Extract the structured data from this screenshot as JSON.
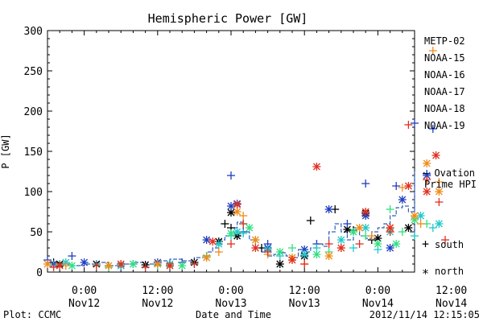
{
  "chart_data": {
    "type": "scatter",
    "title": "Hemispheric Power [GW]",
    "ylabel": "P [GW]",
    "xlabel": "Date and Time",
    "ylim": [
      0,
      300
    ],
    "yticks": [
      0,
      50,
      100,
      150,
      200,
      250,
      300
    ],
    "xlim_hours": [
      -6,
      54
    ],
    "xticks": [
      {
        "hour": 0,
        "time": "0:00",
        "day": "Nov12"
      },
      {
        "hour": 12,
        "time": "12:00",
        "day": "Nov12"
      },
      {
        "hour": 24,
        "time": "0:00",
        "day": "Nov13"
      },
      {
        "hour": 36,
        "time": "12:00",
        "day": "Nov13"
      },
      {
        "hour": 48,
        "time": "0:00",
        "day": "Nov14"
      },
      {
        "hour": 60,
        "time": "12:00",
        "day": "Nov14"
      }
    ],
    "legend_position": "right",
    "marker_legend": [
      {
        "symbol": "+",
        "label": "south"
      },
      {
        "symbol": "*",
        "label": "north"
      }
    ],
    "ovation_label_1": "— Ovation",
    "ovation_label_2": "Prime HPI",
    "ovation": {
      "name": "Ovation Prime HPI",
      "color": "#3060c0",
      "x": [
        -8,
        -6,
        -4,
        -2,
        0,
        2,
        4,
        6,
        8,
        10,
        12,
        14,
        16,
        18,
        20,
        21,
        22,
        23,
        24,
        25,
        26,
        27,
        28,
        29,
        30,
        31,
        32,
        33,
        34,
        35,
        36,
        37,
        38,
        39,
        40,
        41,
        42,
        43,
        44,
        45,
        46,
        47,
        48,
        49,
        50,
        51,
        52,
        53,
        54,
        55,
        56,
        57,
        58,
        58.5,
        59
      ],
      "y": [
        10,
        10,
        12,
        10,
        8,
        10,
        12,
        8,
        10,
        12,
        10,
        14,
        16,
        14,
        18,
        25,
        30,
        40,
        45,
        55,
        62,
        50,
        40,
        30,
        25,
        20,
        22,
        24,
        20,
        18,
        28,
        25,
        30,
        35,
        32,
        50,
        60,
        50,
        40,
        55,
        45,
        42,
        50,
        55,
        60,
        70,
        80,
        82,
        75,
        82,
        80,
        85,
        125,
        125,
        40
      ]
    },
    "series": [
      {
        "name": "METP-02",
        "color": "#000000",
        "south": [
          [
            -5,
            12
          ],
          [
            4,
            8
          ],
          [
            14,
            10
          ],
          [
            20,
            20
          ],
          [
            23,
            60
          ],
          [
            24,
            55
          ],
          [
            25,
            45
          ],
          [
            29,
            30
          ],
          [
            37,
            64
          ],
          [
            41,
            78
          ],
          [
            44,
            52
          ],
          [
            47,
            40
          ]
        ],
        "north": [
          [
            -4,
            10
          ],
          [
            2,
            10
          ],
          [
            10,
            9
          ],
          [
            18,
            12
          ],
          [
            22,
            38
          ],
          [
            24,
            74
          ],
          [
            25,
            45
          ],
          [
            32,
            10
          ],
          [
            36,
            20
          ],
          [
            43,
            53
          ],
          [
            46,
            73
          ],
          [
            48,
            42
          ],
          [
            53,
            55
          ]
        ]
      },
      {
        "name": "NOAA-15",
        "color": "#1f3fbf",
        "south": [
          [
            -6,
            15
          ],
          [
            -2,
            20
          ],
          [
            8,
            10
          ],
          [
            16,
            12
          ],
          [
            24,
            120
          ],
          [
            26,
            50
          ],
          [
            30,
            35
          ],
          [
            38,
            35
          ],
          [
            43,
            60
          ],
          [
            46,
            110
          ],
          [
            51,
            107
          ],
          [
            54,
            185
          ],
          [
            56,
            122
          ],
          [
            57,
            178
          ]
        ],
        "north": [
          [
            -5,
            10
          ],
          [
            0,
            12
          ],
          [
            6,
            8
          ],
          [
            12,
            12
          ],
          [
            20,
            40
          ],
          [
            24,
            82
          ],
          [
            25,
            85
          ],
          [
            30,
            30
          ],
          [
            36,
            28
          ],
          [
            40,
            78
          ],
          [
            46,
            70
          ],
          [
            50,
            30
          ],
          [
            52,
            90
          ],
          [
            56,
            120
          ]
        ]
      },
      {
        "name": "NOAA-16",
        "color": "#20c8c8",
        "south": [
          [
            -5,
            8
          ],
          [
            2,
            10
          ],
          [
            10,
            6
          ],
          [
            18,
            10
          ],
          [
            24,
            45
          ],
          [
            26,
            48
          ],
          [
            32,
            20
          ],
          [
            38,
            30
          ],
          [
            44,
            30
          ],
          [
            48,
            28
          ],
          [
            54,
            45
          ],
          [
            57,
            55
          ]
        ],
        "north": [
          [
            -3,
            12
          ],
          [
            6,
            8
          ],
          [
            14,
            10
          ],
          [
            22,
            35
          ],
          [
            25,
            50
          ],
          [
            30,
            28
          ],
          [
            36,
            22
          ],
          [
            42,
            40
          ],
          [
            46,
            55
          ],
          [
            50,
            50
          ],
          [
            55,
            70
          ],
          [
            58,
            60
          ]
        ]
      },
      {
        "name": "NOAA-17",
        "color": "#30e080",
        "south": [
          [
            -4,
            10
          ],
          [
            4,
            6
          ],
          [
            12,
            8
          ],
          [
            20,
            20
          ],
          [
            26,
            60
          ],
          [
            28,
            40
          ],
          [
            34,
            30
          ],
          [
            40,
            25
          ],
          [
            46,
            45
          ],
          [
            50,
            78
          ],
          [
            52,
            50
          ],
          [
            56,
            60
          ]
        ],
        "north": [
          [
            -2,
            8
          ],
          [
            8,
            10
          ],
          [
            16,
            8
          ],
          [
            24,
            48
          ],
          [
            27,
            55
          ],
          [
            32,
            25
          ],
          [
            38,
            22
          ],
          [
            44,
            50
          ],
          [
            48,
            35
          ],
          [
            51,
            35
          ],
          [
            54,
            65
          ]
        ]
      },
      {
        "name": "NOAA-18",
        "color": "#f08c1a",
        "south": [
          [
            -3,
            8
          ],
          [
            6,
            10
          ],
          [
            14,
            8
          ],
          [
            22,
            25
          ],
          [
            26,
            70
          ],
          [
            30,
            22
          ],
          [
            36,
            10
          ],
          [
            42,
            30
          ],
          [
            47,
            45
          ],
          [
            52,
            105
          ],
          [
            55,
            60
          ],
          [
            57,
            275
          ],
          [
            58,
            112
          ]
        ],
        "north": [
          [
            -6,
            10
          ],
          [
            4,
            8
          ],
          [
            12,
            10
          ],
          [
            20,
            18
          ],
          [
            25,
            75
          ],
          [
            28,
            40
          ],
          [
            34,
            18
          ],
          [
            40,
            20
          ],
          [
            45,
            55
          ],
          [
            50,
            55
          ],
          [
            54,
            70
          ],
          [
            56,
            135
          ],
          [
            58,
            100
          ]
        ]
      },
      {
        "name": "NOAA-19",
        "color": "#e03020",
        "south": [
          [
            -5,
            6
          ],
          [
            2,
            8
          ],
          [
            10,
            6
          ],
          [
            18,
            10
          ],
          [
            24,
            35
          ],
          [
            26,
            60
          ],
          [
            30,
            25
          ],
          [
            36,
            10
          ],
          [
            40,
            35
          ],
          [
            45,
            35
          ],
          [
            50,
            50
          ],
          [
            53,
            183
          ],
          [
            56,
            115
          ],
          [
            58,
            87
          ],
          [
            59,
            40
          ]
        ],
        "north": [
          [
            -4,
            8
          ],
          [
            6,
            10
          ],
          [
            14,
            8
          ],
          [
            21,
            38
          ],
          [
            25,
            84
          ],
          [
            28,
            30
          ],
          [
            34,
            15
          ],
          [
            38,
            131
          ],
          [
            42,
            30
          ],
          [
            46,
            75
          ],
          [
            50,
            55
          ],
          [
            53,
            107
          ],
          [
            56,
            100
          ],
          [
            57.5,
            145
          ]
        ]
      }
    ]
  },
  "footer": {
    "plot_credit": "Plot: CCMC",
    "timestamp": "2012/11/14 12:15:05"
  }
}
